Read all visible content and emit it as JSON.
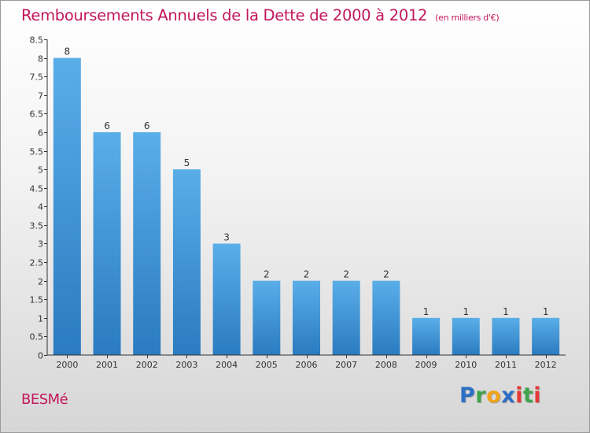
{
  "header": {
    "title": "Remboursements Annuels de la Dette de 2000 à 2012",
    "subtitle": "(en milliers d'€)"
  },
  "footer": {
    "commune": "BESMé",
    "logo": [
      "P",
      "r",
      "o",
      "x",
      "i",
      "t",
      "i"
    ],
    "logo_colors": [
      "#2b6ec5",
      "#3fa34d",
      "#f2a31b",
      "#2b6ec5",
      "#e53935",
      "#3fa34d",
      "#e53935"
    ]
  },
  "colors": {
    "bar_top": "#5aaee8",
    "bar_bottom": "#2a7bc0",
    "title": "#c2185b",
    "axis": "#333333"
  },
  "chart_data": {
    "type": "bar",
    "title": "Remboursements Annuels de la Dette de 2000 à 2012",
    "categories": [
      "2000",
      "2001",
      "2002",
      "2003",
      "2004",
      "2005",
      "2006",
      "2007",
      "2008",
      "2009",
      "2010",
      "2011",
      "2012"
    ],
    "values": [
      8,
      6,
      6,
      5,
      3,
      2,
      2,
      2,
      2,
      1,
      1,
      1,
      1
    ],
    "data_labels": [
      "8",
      "6",
      "6",
      "5",
      "3",
      "2",
      "2",
      "2",
      "2",
      "1",
      "1",
      "1",
      "1"
    ],
    "yticks": [
      0,
      0.5,
      1,
      1.5,
      2,
      2.5,
      3,
      3.5,
      4,
      4.5,
      5,
      5.5,
      6,
      6.5,
      7,
      7.5,
      8,
      8.5
    ],
    "ytick_labels": [
      "0",
      "0.5",
      "1",
      "1.5",
      "2",
      "2.5",
      "3",
      "3.5",
      "4",
      "4.5",
      "5",
      "5.5",
      "6",
      "6.5",
      "7",
      "7.5",
      "8",
      "8.5"
    ],
    "ylim": [
      0,
      8.5
    ],
    "xlabel": "",
    "ylabel": "",
    "grid": false,
    "legend": "none"
  }
}
